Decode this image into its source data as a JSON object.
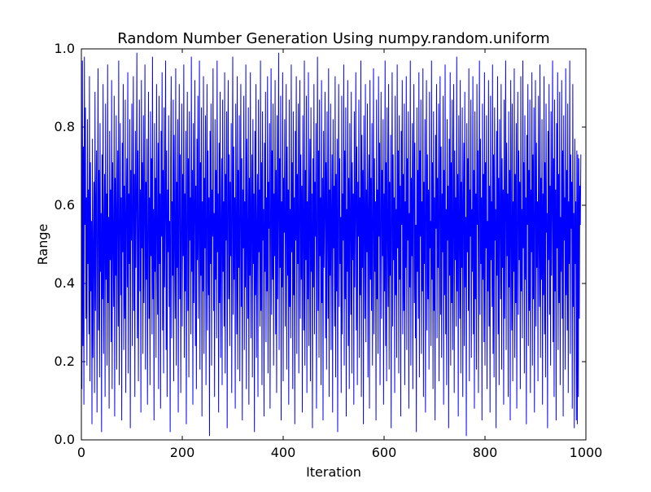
{
  "chart_data": {
    "type": "line",
    "title": "Random Number Generation Using numpy.random.uniform",
    "xlabel": "Iteration",
    "ylabel": "Range",
    "xlim": [
      0,
      1000
    ],
    "ylim": [
      0.0,
      1.0
    ],
    "xticks": [
      0,
      200,
      400,
      600,
      800,
      1000
    ],
    "xtick_labels": [
      "0",
      "200",
      "400",
      "600",
      "800",
      "1000"
    ],
    "yticks": [
      0.0,
      0.2,
      0.4,
      0.6,
      0.8,
      1.0
    ],
    "ytick_labels": [
      "0.0",
      "0.2",
      "0.4",
      "0.6",
      "0.8",
      "1.0"
    ],
    "grid": false,
    "series": [
      {
        "color": "#0000ff",
        "x_start": 0,
        "x_step": 1,
        "values": [
          0.58,
          0.13,
          0.97,
          0.24,
          0.75,
          0.09,
          0.98,
          0.55,
          0.85,
          0.31,
          0.62,
          0.19,
          0.82,
          0.45,
          0.64,
          0.27,
          0.93,
          0.15,
          0.71,
          0.38,
          0.56,
          0.04,
          0.77,
          0.21,
          0.49,
          0.66,
          0.12,
          0.89,
          0.33,
          0.61,
          0.74,
          0.07,
          0.52,
          0.95,
          0.28,
          0.69,
          0.16,
          0.81,
          0.43,
          0.58,
          0.02,
          0.73,
          0.36,
          0.91,
          0.22,
          0.54,
          0.68,
          0.11,
          0.86,
          0.41,
          0.63,
          0.19,
          0.96,
          0.35,
          0.57,
          0.08,
          0.79,
          0.46,
          0.64,
          0.25,
          0.92,
          0.13,
          0.71,
          0.52,
          0.34,
          0.88,
          0.06,
          0.67,
          0.42,
          0.83,
          0.18,
          0.59,
          0.74,
          0.29,
          0.97,
          0.14,
          0.53,
          0.81,
          0.37,
          0.62,
          0.05,
          0.76,
          0.48,
          0.91,
          0.23,
          0.65,
          0.31,
          0.87,
          0.12,
          0.58,
          0.72,
          0.39,
          0.94,
          0.17,
          0.63,
          0.45,
          0.82,
          0.03,
          0.69,
          0.51,
          0.86,
          0.24,
          0.57,
          0.93,
          0.33,
          0.68,
          0.11,
          0.79,
          0.44,
          0.61,
          0.99,
          0.26,
          0.74,
          0.15,
          0.55,
          0.87,
          0.38,
          0.64,
          0.07,
          0.92,
          0.49,
          0.71,
          0.22,
          0.83,
          0.35,
          0.58,
          0.96,
          0.18,
          0.66,
          0.41,
          0.77,
          0.09,
          0.53,
          0.89,
          0.31,
          0.62,
          0.14,
          0.84,
          0.47,
          0.72,
          0.27,
          0.98,
          0.36,
          0.59,
          0.05,
          0.81,
          0.43,
          0.67,
          0.21,
          0.91,
          0.54,
          0.32,
          0.76,
          0.13,
          0.88,
          0.45,
          0.63,
          0.08,
          0.79,
          0.52,
          0.94,
          0.28,
          0.69,
          0.17,
          0.85,
          0.39,
          0.58,
          0.97,
          0.23,
          0.74,
          0.11,
          0.64,
          0.48,
          0.83,
          0.34,
          0.56,
          0.02,
          0.71,
          0.93,
          0.26,
          0.61,
          0.42,
          0.87,
          0.15,
          0.78,
          0.53,
          0.31,
          0.95,
          0.19,
          0.66,
          0.44,
          0.82,
          0.07,
          0.59,
          0.91,
          0.36,
          0.73,
          0.12,
          0.55,
          0.86,
          0.29,
          0.68,
          0.47,
          0.96,
          0.21,
          0.63,
          0.38,
          0.79,
          0.04,
          0.57,
          0.89,
          0.33,
          0.72,
          0.16,
          0.84,
          0.51,
          0.62,
          0.27,
          0.98,
          0.43,
          0.69,
          0.09,
          0.81,
          0.35,
          0.58,
          0.92,
          0.24,
          0.65,
          0.13,
          0.77,
          0.46,
          0.88,
          0.31,
          0.54,
          0.97,
          0.18,
          0.71,
          0.42,
          0.85,
          0.06,
          0.61,
          0.38,
          0.93,
          0.22,
          0.67,
          0.49,
          0.83,
          0.14,
          0.56,
          0.91,
          0.28,
          0.74,
          0.37,
          0.62,
          0.01,
          0.79,
          0.45,
          0.86,
          0.19,
          0.64,
          0.52,
          0.95,
          0.33,
          0.58,
          0.11,
          0.82,
          0.41,
          0.69,
          0.26,
          0.97,
          0.48,
          0.63,
          0.07,
          0.76,
          0.35,
          0.89,
          0.21,
          0.55,
          0.72,
          0.14,
          0.87,
          0.43,
          0.61,
          0.29,
          0.94,
          0.17,
          0.68,
          0.51,
          0.84,
          0.03,
          0.59,
          0.92,
          0.36,
          0.73,
          0.24,
          0.66,
          0.47,
          0.81,
          0.12,
          0.57,
          0.98,
          0.32,
          0.75,
          0.41,
          0.62,
          0.08,
          0.86,
          0.53,
          0.27,
          0.93,
          0.18,
          0.69,
          0.44,
          0.83,
          0.15,
          0.56,
          0.91,
          0.34,
          0.72,
          0.05,
          0.64,
          0.49,
          0.88,
          0.23,
          0.61,
          0.39,
          0.96,
          0.13,
          0.77,
          0.52,
          0.31,
          0.85,
          0.09,
          0.67,
          0.42,
          0.94,
          0.26,
          0.58,
          0.73,
          0.16,
          0.82,
          0.45,
          0.63,
          0.02,
          0.79,
          0.37,
          0.91,
          0.21,
          0.55,
          0.68,
          0.11,
          0.87,
          0.48,
          0.64,
          0.29,
          0.97,
          0.33,
          0.71,
          0.14,
          0.84,
          0.51,
          0.59,
          0.06,
          0.76,
          0.43,
          0.89,
          0.25,
          0.62,
          0.38,
          0.93,
          0.17,
          0.66,
          0.54,
          0.81,
          0.08,
          0.57,
          0.95,
          0.32,
          0.74,
          0.41,
          0.86,
          0.19,
          0.63,
          0.47,
          0.92,
          0.27,
          0.69,
          0.12,
          0.83,
          0.36,
          0.58,
          0.99,
          0.23,
          0.72,
          0.44,
          0.88,
          0.05,
          0.61,
          0.39,
          0.94,
          0.15,
          0.67,
          0.53,
          0.82,
          0.29,
          0.56,
          0.91,
          0.18,
          0.75,
          0.42,
          0.64,
          0.09,
          0.87,
          0.34,
          0.59,
          0.26,
          0.96,
          0.48,
          0.71,
          0.13,
          0.84,
          0.37,
          0.62,
          0.04,
          0.79,
          0.51,
          0.93,
          0.22,
          0.68,
          0.45,
          0.86,
          0.17,
          0.57,
          0.92,
          0.31,
          0.73,
          0.41,
          0.65,
          0.07,
          0.83,
          0.54,
          0.28,
          0.97,
          0.19,
          0.69,
          0.46,
          0.88,
          0.12,
          0.61,
          0.36,
          0.94,
          0.24,
          0.58,
          0.77,
          0.15,
          0.85,
          0.43,
          0.63,
          0.03,
          0.72,
          0.39,
          0.91,
          0.27,
          0.66,
          0.52,
          0.81,
          0.08,
          0.56,
          0.98,
          0.33,
          0.74,
          0.21,
          0.87,
          0.47,
          0.62,
          0.14,
          0.92,
          0.35,
          0.67,
          0.05,
          0.79,
          0.44,
          0.58,
          0.89,
          0.26,
          0.71,
          0.18,
          0.84,
          0.53,
          0.31,
          0.95,
          0.11,
          0.64,
          0.42,
          0.86,
          0.23,
          0.59,
          0.73,
          0.07,
          0.82,
          0.49,
          0.65,
          0.29,
          0.93,
          0.16,
          0.68,
          0.38,
          0.77,
          0.02,
          0.61,
          0.91,
          0.34,
          0.72,
          0.45,
          0.57,
          0.12,
          0.88,
          0.27,
          0.63,
          0.51,
          0.96,
          0.19,
          0.74,
          0.36,
          0.85,
          0.06,
          0.59,
          0.43,
          0.92,
          0.24,
          0.67,
          0.13,
          0.81,
          0.55,
          0.32,
          0.89,
          0.17,
          0.71,
          0.46,
          0.63,
          0.09,
          0.84,
          0.39,
          0.58,
          0.94,
          0.28,
          0.75,
          0.14,
          0.66,
          0.52,
          0.87,
          0.21,
          0.62,
          0.37,
          0.97,
          0.11,
          0.78,
          0.44,
          0.69,
          0.04,
          0.83,
          0.56,
          0.31,
          0.91,
          0.25,
          0.64,
          0.48,
          0.86,
          0.16,
          0.59,
          0.73,
          0.08,
          0.92,
          0.41,
          0.67,
          0.33,
          0.81,
          0.19,
          0.55,
          0.95,
          0.27,
          0.72,
          0.43,
          0.61,
          0.05,
          0.87,
          0.36,
          0.64,
          0.22,
          0.93,
          0.52,
          0.76,
          0.14,
          0.58,
          0.89,
          0.31,
          0.69,
          0.47,
          0.82,
          0.09,
          0.63,
          0.38,
          0.97,
          0.24,
          0.71,
          0.15,
          0.85,
          0.53,
          0.34,
          0.91,
          0.18,
          0.66,
          0.42,
          0.78,
          0.03,
          0.57,
          0.94,
          0.29,
          0.73,
          0.46,
          0.62,
          0.12,
          0.88,
          0.37,
          0.59,
          0.21,
          0.96,
          0.49,
          0.74,
          0.17,
          0.83,
          0.41,
          0.65,
          0.06,
          0.79,
          0.55,
          0.92,
          0.27,
          0.68,
          0.33,
          0.86,
          0.14,
          0.61,
          0.44,
          0.93,
          0.23,
          0.72,
          0.51,
          0.84,
          0.08,
          0.58,
          0.39,
          0.97,
          0.19,
          0.67,
          0.47,
          0.81,
          0.13,
          0.63,
          0.91,
          0.35,
          0.76,
          0.26,
          0.55,
          0.02,
          0.85,
          0.43,
          0.69,
          0.31,
          0.94,
          0.16,
          0.74,
          0.52,
          0.87,
          0.22,
          0.61,
          0.38,
          0.95,
          0.11,
          0.66,
          0.45,
          0.82,
          0.07,
          0.59,
          0.92,
          0.28,
          0.73,
          0.36,
          0.64,
          0.18,
          0.89,
          0.49,
          0.56,
          0.24,
          0.97,
          0.41,
          0.71,
          0.13,
          0.84,
          0.33,
          0.62,
          0.05,
          0.78,
          0.54,
          0.91,
          0.26,
          0.67,
          0.44,
          0.86,
          0.15,
          0.58,
          0.93,
          0.32,
          0.75,
          0.21,
          0.63,
          0.48,
          0.88,
          0.09,
          0.69,
          0.37,
          0.96,
          0.27,
          0.59,
          0.14,
          0.82,
          0.51,
          0.65,
          0.03,
          0.77,
          0.42,
          0.94,
          0.19,
          0.71,
          0.35,
          0.87,
          0.23,
          0.56,
          0.91,
          0.12,
          0.74,
          0.46,
          0.62,
          0.29,
          0.98,
          0.38,
          0.68,
          0.06,
          0.83,
          0.53,
          0.31,
          0.92,
          0.17,
          0.66,
          0.44,
          0.85,
          0.11,
          0.61,
          0.76,
          0.24,
          0.89,
          0.39,
          0.57,
          0.01,
          0.81,
          0.48,
          0.72,
          0.33,
          0.95,
          0.15,
          0.64,
          0.52,
          0.87,
          0.21,
          0.59,
          0.43,
          0.93,
          0.27,
          0.69,
          0.08,
          0.84,
          0.36,
          0.63,
          0.18,
          0.91,
          0.55,
          0.74,
          0.12,
          0.58,
          0.97,
          0.32,
          0.77,
          0.45,
          0.62,
          0.05,
          0.86,
          0.41,
          0.68,
          0.25,
          0.94,
          0.19,
          0.71,
          0.49,
          0.83,
          0.13,
          0.56,
          0.38,
          0.92,
          0.29,
          0.65,
          0.07,
          0.88,
          0.46,
          0.61,
          0.34,
          0.96,
          0.22,
          0.73,
          0.16,
          0.85,
          0.51,
          0.59,
          0.03,
          0.79,
          0.42,
          0.93,
          0.27,
          0.67,
          0.14,
          0.82,
          0.55,
          0.36,
          0.91,
          0.18,
          0.72,
          0.44,
          0.64,
          0.09,
          0.87,
          0.31,
          0.58,
          0.97,
          0.23,
          0.76,
          0.47,
          0.63,
          0.11,
          0.84,
          0.39,
          0.69,
          0.05,
          0.92,
          0.53,
          0.28,
          0.86,
          0.15,
          0.61,
          0.43,
          0.95,
          0.21,
          0.68,
          0.35,
          0.81,
          0.08,
          0.57,
          0.89,
          0.32,
          0.74,
          0.46,
          0.66,
          0.13,
          0.93,
          0.38,
          0.59,
          0.26,
          0.97,
          0.49,
          0.71,
          0.17,
          0.83,
          0.41,
          0.62,
          0.04,
          0.78,
          0.55,
          0.91,
          0.24,
          0.69,
          0.33,
          0.87,
          0.12,
          0.64,
          0.48,
          0.94,
          0.19,
          0.73,
          0.36,
          0.85,
          0.07,
          0.58,
          0.92,
          0.29,
          0.76,
          0.44,
          0.61,
          0.15,
          0.88,
          0.52,
          0.34,
          0.96,
          0.21,
          0.67,
          0.41,
          0.82,
          0.09,
          0.63,
          0.37,
          0.93,
          0.27,
          0.71,
          0.16,
          0.86,
          0.53,
          0.58,
          0.03,
          0.79,
          0.46,
          0.91,
          0.32,
          0.65,
          0.19,
          0.84,
          0.42,
          0.59,
          0.97,
          0.25,
          0.72,
          0.11,
          0.87,
          0.38,
          0.64,
          0.05,
          0.81,
          0.49,
          0.94,
          0.23,
          0.68,
          0.35,
          0.89,
          0.14,
          0.57,
          0.43,
          0.92,
          0.31,
          0.74,
          0.06,
          0.83,
          0.51,
          0.62,
          0.18,
          0.95,
          0.37,
          0.69,
          0.28,
          0.86,
          0.12,
          0.61,
          0.45,
          0.97,
          0.22,
          0.73,
          0.54,
          0.66,
          0.08,
          0.91,
          0.34,
          0.58,
          0.03,
          0.77,
          0.45,
          0.61,
          0.05,
          0.74,
          0.04,
          0.73,
          0.11,
          0.72,
          0.31,
          0.65,
          0.55,
          0.73
        ]
      }
    ]
  }
}
